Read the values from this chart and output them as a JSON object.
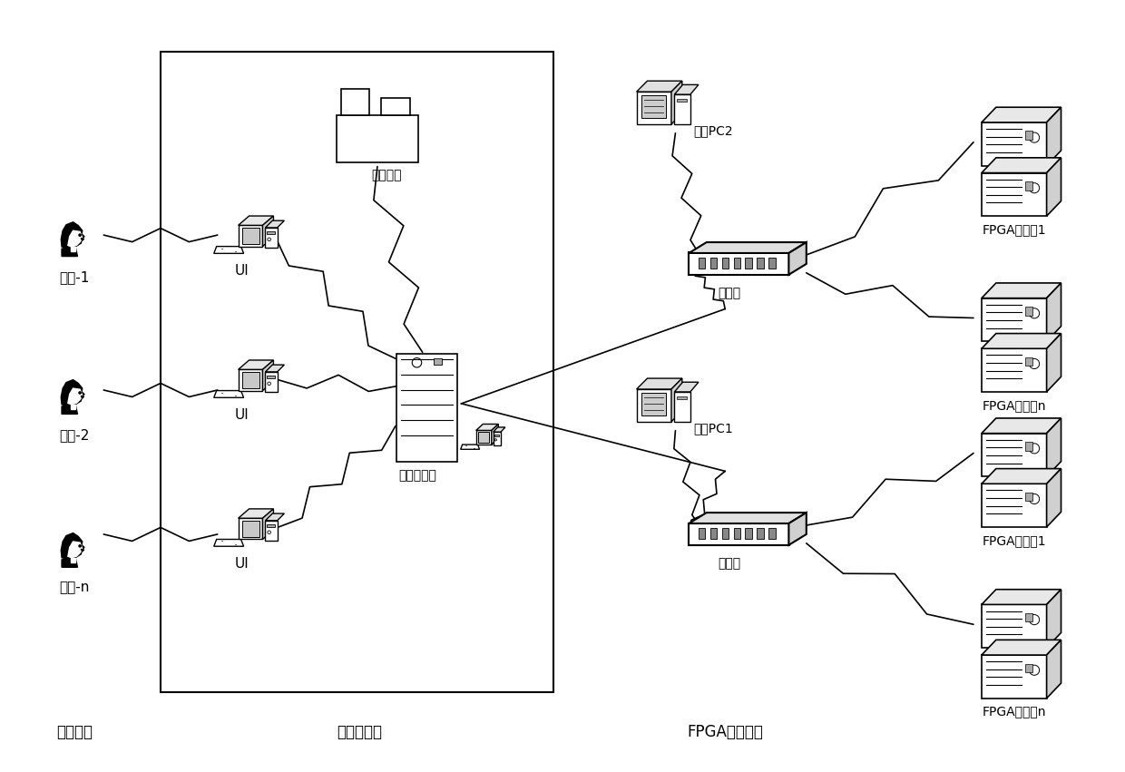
{
  "bg_color": "#ffffff",
  "labels": {
    "user1": "用户-1",
    "user2": "用户-2",
    "usern": "用户-n",
    "ui": "UI",
    "datacenter": "数据中心",
    "server": "破解服务器",
    "pc2": "节点PC2",
    "pc1": "节点PC1",
    "switch1": "交换机",
    "switch2": "交换机",
    "fpga1_top": "FPGA解密机1",
    "fpga2_top": "FPGA解密机n",
    "fpga1_bot": "FPGA解密机1",
    "fpga2_bot": "FPGA解密机n",
    "interface_sys": "界面系统",
    "server_sys": "服务器系统",
    "fpga_node": "FPGA解密节点"
  },
  "font_size": 10,
  "font_size_label": 12
}
